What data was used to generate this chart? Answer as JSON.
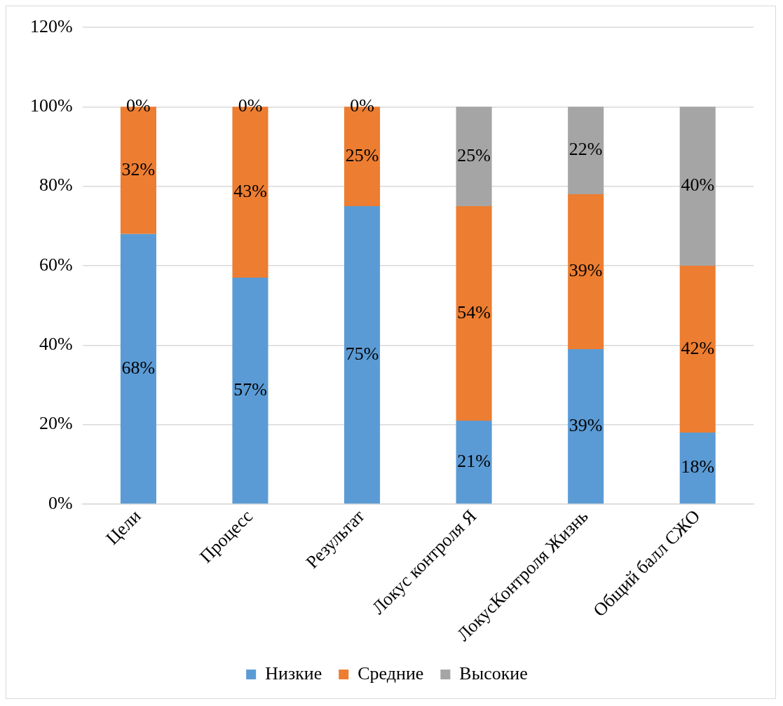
{
  "chart_data": {
    "type": "bar",
    "stacked": true,
    "categories": [
      "Цели",
      "Процесс",
      "Результат",
      "Локус контроля Я",
      "ЛокусКонтроля Жизнь",
      "Общий балл СЖО"
    ],
    "series": [
      {
        "name": "Низкие",
        "color": "#5b9bd5",
        "values": [
          68,
          57,
          75,
          21,
          39,
          18
        ],
        "value_labels": [
          "68%",
          "57%",
          "75%",
          "21%",
          "39%",
          "18%"
        ]
      },
      {
        "name": "Средние",
        "color": "#ed7d31",
        "values": [
          32,
          43,
          25,
          54,
          39,
          42
        ],
        "value_labels": [
          "32%",
          "43%",
          "25%",
          "54%",
          "39%",
          "42%"
        ]
      },
      {
        "name": "Высокие",
        "color": "#a5a5a5",
        "values": [
          0,
          0,
          0,
          25,
          22,
          40
        ],
        "value_labels": [
          "0%",
          "0%",
          "0%",
          "25%",
          "22%",
          "40%"
        ]
      }
    ],
    "ylim": [
      0,
      120
    ],
    "yticks": [
      {
        "value": 0,
        "label": "0%"
      },
      {
        "value": 20,
        "label": "20%"
      },
      {
        "value": 40,
        "label": "40%"
      },
      {
        "value": 60,
        "label": "60%"
      },
      {
        "value": 80,
        "label": "80%"
      },
      {
        "value": 100,
        "label": "100%"
      },
      {
        "value": 120,
        "label": "120%"
      }
    ],
    "grid": "y",
    "legend": "bottom"
  }
}
